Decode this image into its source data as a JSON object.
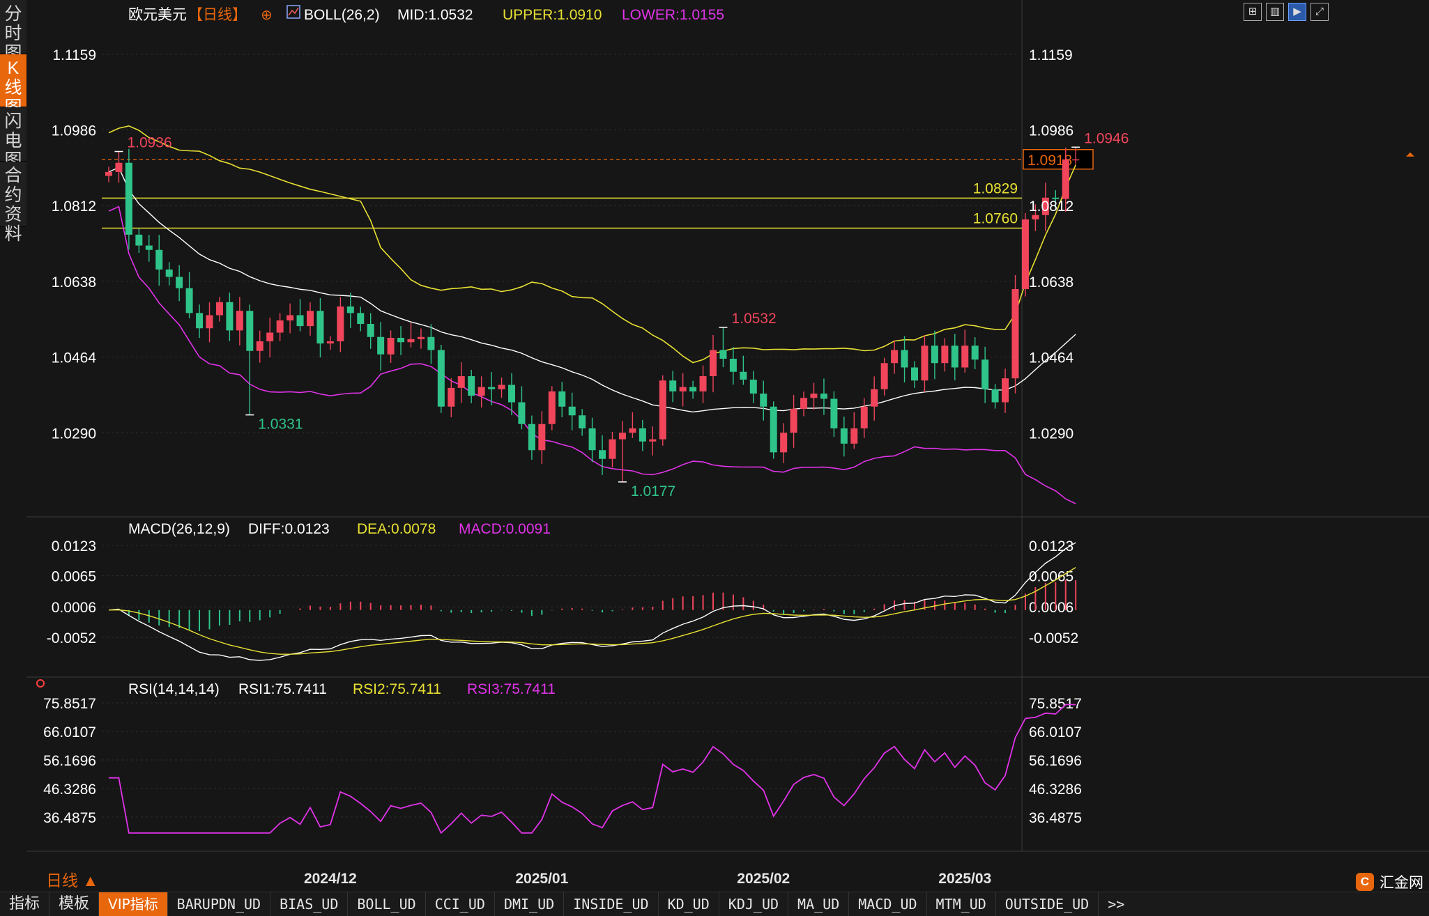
{
  "side_tabs": [
    {
      "label": "分时图",
      "active": false
    },
    {
      "label": "K线图",
      "active": true
    },
    {
      "label": "闪电图",
      "active": false
    },
    {
      "label": "合约资料",
      "active": false
    }
  ],
  "header": {
    "symbol": "欧元美元",
    "period": "【日线】",
    "boll": {
      "label": "BOLL(26,2)",
      "mid": "MID:1.0532",
      "upper": "UPPER:1.0910",
      "lower": "LOWER:1.0155"
    }
  },
  "macd_header": {
    "label": "MACD(26,12,9)",
    "diff": "DIFF:0.0123",
    "dea": "DEA:0.0078",
    "macd": "MACD:0.0091"
  },
  "rsi_header": {
    "label": "RSI(14,14,14)",
    "rsi1": "RSI1:75.7411",
    "rsi2": "RSI2:75.7411",
    "rsi3": "RSI3:75.7411"
  },
  "colors": {
    "up": "#f0455a",
    "down": "#2fc48a",
    "upper": "#e8e033",
    "mid": "#ffffff",
    "lower": "#e033e8",
    "accent": "#e8660c",
    "axis": "#ffffff"
  },
  "chart_data": [
    {
      "type": "candlestick",
      "name": "price",
      "x_ticks": [
        "2024/12",
        "2025/01",
        "2025/02",
        "2025/03"
      ],
      "x_tick_index": [
        22,
        43,
        65,
        85
      ],
      "yticks": [
        "1.1159",
        "1.0986",
        "1.0812",
        "1.0638",
        "1.0464",
        "1.0290"
      ],
      "ylim": [
        1.014,
        1.122
      ],
      "open": [
        1.088,
        1.0889,
        1.091,
        1.0745,
        1.072,
        1.071,
        1.0665,
        1.0648,
        1.0622,
        1.0565,
        1.053,
        1.056,
        1.059,
        1.0525,
        1.057,
        1.0478,
        1.05,
        1.052,
        1.0548,
        1.056,
        1.0535,
        1.057,
        1.0495,
        1.05,
        1.058,
        1.0565,
        1.054,
        1.051,
        1.047,
        1.0508,
        1.0498,
        1.0505,
        1.051,
        1.048,
        1.035,
        1.0393,
        1.042,
        1.0375,
        1.0395,
        1.039,
        1.04,
        1.036,
        1.031,
        1.025,
        1.031,
        1.0385,
        1.035,
        1.033,
        1.03,
        1.025,
        1.023,
        1.0275,
        1.029,
        1.03,
        1.027,
        1.0275,
        1.041,
        1.0385,
        1.0395,
        1.0385,
        1.042,
        1.048,
        1.046,
        1.043,
        1.0412,
        1.038,
        1.035,
        1.0245,
        1.029,
        1.0345,
        1.037,
        1.038,
        1.0368,
        1.03,
        1.0265,
        1.03,
        1.035,
        1.039,
        1.045,
        1.048,
        1.044,
        1.041,
        1.049,
        1.045,
        1.049,
        1.044,
        1.049,
        1.0458,
        1.039,
        1.036,
        1.0415,
        1.062,
        1.078,
        1.079,
        1.083,
        1.0827,
        1.0918
      ],
      "close": [
        1.0889,
        1.091,
        1.0745,
        1.072,
        1.071,
        1.0665,
        1.0648,
        1.0622,
        1.0565,
        1.053,
        1.056,
        1.059,
        1.0525,
        1.057,
        1.0478,
        1.05,
        1.052,
        1.0548,
        1.056,
        1.0535,
        1.057,
        1.0495,
        1.05,
        1.058,
        1.0565,
        1.054,
        1.051,
        1.047,
        1.0508,
        1.0498,
        1.0505,
        1.051,
        1.048,
        1.035,
        1.0393,
        1.042,
        1.0375,
        1.0395,
        1.039,
        1.04,
        1.036,
        1.031,
        1.025,
        1.031,
        1.0385,
        1.035,
        1.033,
        1.03,
        1.025,
        1.023,
        1.0275,
        1.029,
        1.03,
        1.027,
        1.0275,
        1.041,
        1.0385,
        1.0395,
        1.0385,
        1.042,
        1.048,
        1.046,
        1.043,
        1.0412,
        1.038,
        1.035,
        1.0245,
        1.029,
        1.0345,
        1.037,
        1.038,
        1.0368,
        1.03,
        1.0265,
        1.03,
        1.035,
        1.039,
        1.045,
        1.048,
        1.044,
        1.041,
        1.049,
        1.045,
        1.049,
        1.044,
        1.049,
        1.0458,
        1.039,
        1.036,
        1.0415,
        1.062,
        1.078,
        1.079,
        1.083,
        1.0827,
        1.0918,
        1.0918
      ],
      "labels": [
        {
          "i": 1,
          "text": "1.0936",
          "value": 1.0936,
          "kind": "high"
        },
        {
          "i": 14,
          "text": "1.0331",
          "value": 1.0331,
          "kind": "low"
        },
        {
          "i": 51,
          "text": "1.0177",
          "value": 1.0177,
          "kind": "low"
        },
        {
          "i": 61,
          "text": "1.0532",
          "value": 1.0532,
          "kind": "high"
        },
        {
          "i": 96,
          "text": "1.0946",
          "value": 1.0946,
          "kind": "high"
        }
      ],
      "hlines": [
        {
          "value": 1.0829,
          "label": "1.0829"
        },
        {
          "value": 1.076,
          "label": "1.0760"
        }
      ],
      "current": {
        "value": 1.0918,
        "label": "1.0918"
      }
    },
    {
      "type": "macd",
      "yticks": [
        "0.0123",
        "0.0065",
        "0.0006",
        "-0.0052"
      ],
      "ylim": [
        -0.0085,
        0.014
      ],
      "diff_end": 0.0123,
      "dea_end": 0.0078,
      "macd_end": 0.0091
    },
    {
      "type": "line",
      "name": "rsi",
      "yticks": [
        "75.8517",
        "66.0107",
        "56.1696",
        "46.3286",
        "36.4875"
      ],
      "ylim": [
        30,
        78
      ],
      "rsi1_end": 75.7411
    }
  ],
  "bottom_tabs": [
    "指标",
    "模板",
    "VIP指标",
    "BARUPDN_UD",
    "BIAS_UD",
    "BOLL_UD",
    "CCI_UD",
    "DMI_UD",
    "INSIDE_UD",
    "KD_UD",
    "KDJ_UD",
    "MA_UD",
    "MACD_UD",
    "MTM_UD",
    "OUTSIDE_UD",
    ">>"
  ],
  "period_selector": "日线 ▲",
  "brand": "汇金网",
  "tool_icons": [
    "grid-icon",
    "bars-icon",
    "active-chart-icon",
    "expand-icon"
  ]
}
